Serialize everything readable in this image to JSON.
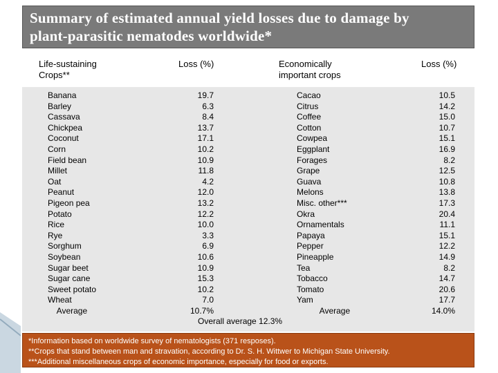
{
  "title": {
    "line1": "Summary of estimated annual yield losses due to damage  by",
    "line2": "plant-parasitic nematodes worldwide*"
  },
  "headers": {
    "life_sustaining_1": "Life-sustaining",
    "life_sustaining_2": "Crops**",
    "loss1": "Loss (%)",
    "econ_1": "Economically",
    "econ_2": "important crops",
    "loss2": "Loss (%)"
  },
  "life_crops": [
    "Banana",
    "Barley",
    "Cassava",
    "Chickpea",
    "Coconut",
    "Corn",
    "Field bean",
    "Millet",
    "Oat",
    "Peanut",
    "Pigeon pea",
    "Potato",
    "Rice",
    "Rye",
    "Sorghum",
    "Soybean",
    "Sugar beet",
    "Sugar cane",
    "Sweet potato",
    "Wheat",
    "    Average"
  ],
  "life_losses": [
    "19.7",
    "6.3",
    "8.4",
    "13.7",
    "17.1",
    "10.2",
    "10.9",
    "11.8",
    "4.2",
    "12.0",
    "13.2",
    "12.2",
    "10.0",
    "3.3",
    "6.9",
    "10.6",
    "10.9",
    "15.3",
    "10.2",
    "7.0",
    "10.7%"
  ],
  "overall_average": "Overall average 12.3%",
  "econ_crops": [
    "Cacao",
    "Citrus",
    "Coffee",
    "Cotton",
    "Cowpea",
    "Eggplant",
    "Forages",
    "Grape",
    "Guava",
    "Melons",
    "Misc. other***",
    "Okra",
    "Ornamentals",
    "Papaya",
    "Pepper",
    "Pineapple",
    "Tea",
    "Tobacco",
    "Tomato",
    "Yam",
    "          Average"
  ],
  "econ_losses": [
    "10.5",
    "14.2",
    "15.0",
    "10.7",
    "15.1",
    "16.9",
    "8.2",
    "12.5",
    "10.8",
    "13.8",
    "17.3",
    "20.4",
    "11.1",
    "15.1",
    "12.2",
    "14.9",
    "8.2",
    "14.7",
    "20.6",
    "17.7",
    "14.0%"
  ],
  "footnotes": {
    "f1": "*Information based on worldwide survey of nematologists (371 resposes).",
    "f2": "**Crops that stand between man and stravation, according to Dr. S. H. Wittwer to Michigan State University.",
    "f3": "***Additional miscellaneous crops of economic importance, especially for  food or exports."
  },
  "colors": {
    "title_bg": "#7a7a7a",
    "table_bg": "#e7e7e7",
    "footnote_bg": "#b9521a"
  }
}
